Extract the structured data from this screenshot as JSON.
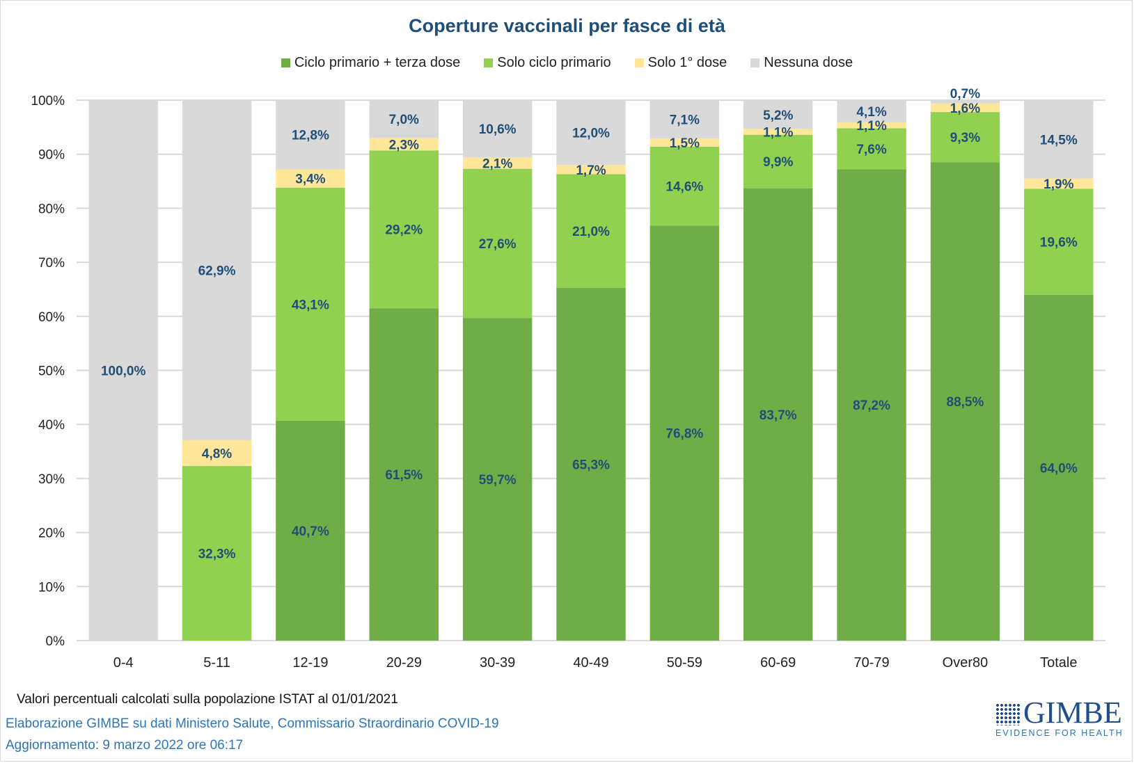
{
  "chart_data": {
    "type": "bar",
    "stacked": true,
    "title": "Coperture vaccinali per fasce di età",
    "xlabel": "",
    "ylabel": "",
    "ylim": [
      0,
      100
    ],
    "y_ticks": [
      "0%",
      "10%",
      "20%",
      "30%",
      "40%",
      "50%",
      "60%",
      "70%",
      "80%",
      "90%",
      "100%"
    ],
    "y_tick_values": [
      0,
      10,
      20,
      30,
      40,
      50,
      60,
      70,
      80,
      90,
      100
    ],
    "grid": true,
    "legend_position": "top",
    "categories": [
      "0-4",
      "5-11",
      "12-19",
      "20-29",
      "30-39",
      "40-49",
      "50-59",
      "60-69",
      "70-79",
      "Over80",
      "Totale"
    ],
    "series": [
      {
        "name": "Ciclo primario + terza dose",
        "color": "#70AD47",
        "values": [
          0,
          0,
          40.7,
          61.5,
          59.7,
          65.3,
          76.8,
          83.7,
          87.2,
          88.5,
          64.0
        ],
        "labels": [
          "",
          "",
          "40,7%",
          "61,5%",
          "59,7%",
          "65,3%",
          "76,8%",
          "83,7%",
          "87,2%",
          "88,5%",
          "64,0%"
        ]
      },
      {
        "name": "Solo ciclo primario",
        "color": "#92D050",
        "values": [
          0,
          32.3,
          43.1,
          29.2,
          27.6,
          21.0,
          14.6,
          9.9,
          7.6,
          9.3,
          19.6
        ],
        "labels": [
          "",
          "32,3%",
          "43,1%",
          "29,2%",
          "27,6%",
          "21,0%",
          "14,6%",
          "9,9%",
          "7,6%",
          "9,3%",
          "19,6%"
        ]
      },
      {
        "name": "Solo 1° dose",
        "color": "#FFE699",
        "values": [
          0,
          4.8,
          3.4,
          2.3,
          2.1,
          1.7,
          1.5,
          1.1,
          1.1,
          1.6,
          1.9
        ],
        "labels": [
          "",
          "4,8%",
          "3,4%",
          "2,3%",
          "2,1%",
          "1,7%",
          "1,5%",
          "1,1%",
          "1,1%",
          "1,6%",
          "1,9%"
        ]
      },
      {
        "name": "Nessuna dose",
        "color": "#D9D9D9",
        "values": [
          100.0,
          62.9,
          12.8,
          7.0,
          10.6,
          12.0,
          7.1,
          5.2,
          4.1,
          0.7,
          14.5
        ],
        "labels": [
          "100,0%",
          "62,9%",
          "12,8%",
          "7,0%",
          "10,6%",
          "12,0%",
          "7,1%",
          "5,2%",
          "4,1%",
          "0,7%",
          "14,5%"
        ]
      }
    ],
    "label_color": "#1F4E79"
  },
  "footer": {
    "note": "Valori percentuali calcolati sulla popolazione ISTAT al 01/01/2021",
    "source": "Elaborazione GIMBE su dati Ministero Salute, Commissario Straordinario COVID-19",
    "updated": "Aggiornamento: 9 marzo 2022 ore 06:17"
  },
  "logo": {
    "name": "GIMBE",
    "tagline": "EVIDENCE FOR HEALTH"
  }
}
